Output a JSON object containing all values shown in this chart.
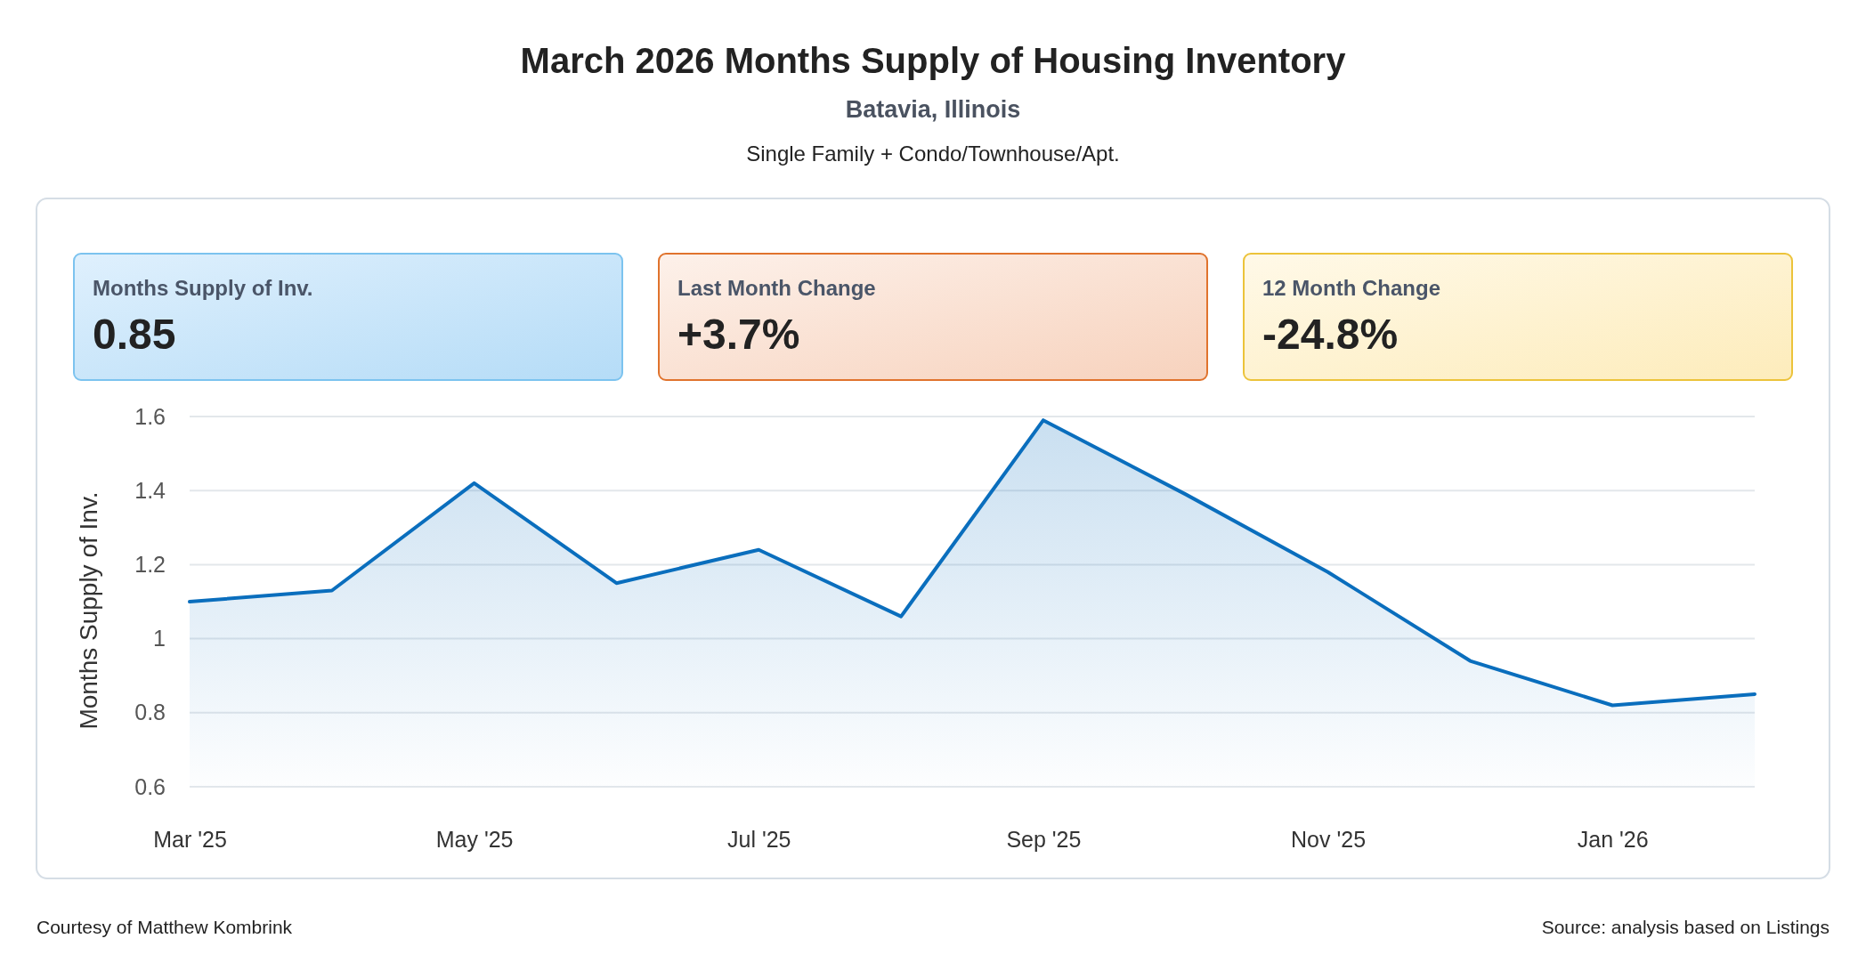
{
  "chart_data": [
    {
      "type": "other",
      "title": "March 2026 Months Supply of Housing Inventory",
      "subtitle": "Batavia, Illinois",
      "annotations": [
        "Single Family + Condo/Townhouse/Apt.",
        "Months Supply of Inv.",
        "0.85",
        "Last Month Change",
        "+3.7%",
        "12 Month Change",
        "-24.8%"
      ]
    },
    {
      "type": "area",
      "ylabel": "Months Supply of Inv.",
      "categories": [
        "Mar '25",
        null,
        "May '25",
        null,
        "Jul '25",
        null,
        "Sep '25",
        null,
        "Nov '25",
        null,
        "Jan '26",
        null
      ],
      "series": [
        {
          "color": "#0a6ebd",
          "values": [
            1.1,
            1.13,
            1.42,
            1.15,
            1.24,
            1.06,
            1.59,
            1.39,
            1.18,
            0.94,
            0.82,
            0.85
          ]
        }
      ],
      "ylim": [
        0.6,
        1.6
      ],
      "yticks": [
        0.6,
        0.8,
        1,
        1.2,
        1.4,
        1.6
      ],
      "grid": "y",
      "annotations": [
        "Courtesy of Matthew Kombrink",
        "Source: analysis based on Listings"
      ]
    }
  ]
}
